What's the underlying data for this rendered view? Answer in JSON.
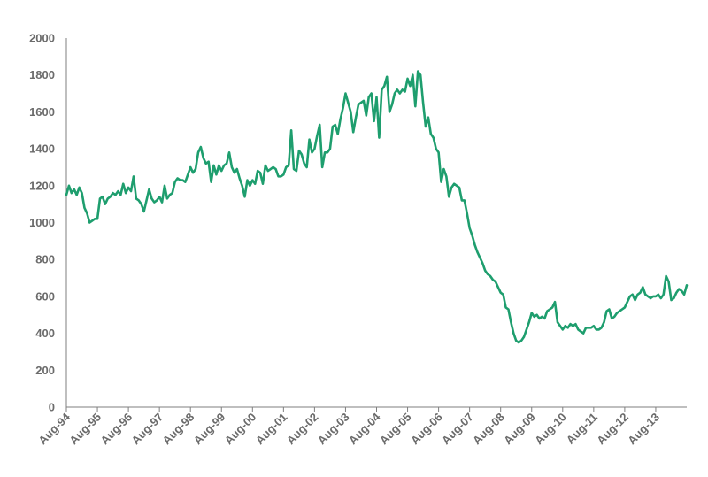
{
  "colors": {
    "series": "#1e9e6e",
    "axis": "#7f7f7f",
    "tick_text": "#6b6b6b"
  },
  "chart_data": {
    "type": "line",
    "title": "",
    "xlabel": "",
    "ylabel": "",
    "ylim": [
      0,
      2000
    ],
    "yticks": [
      0,
      200,
      400,
      600,
      800,
      1000,
      1200,
      1400,
      1600,
      1800,
      2000
    ],
    "x_tick_labels": [
      "Aug-94",
      "Aug-95",
      "Aug-96",
      "Aug-97",
      "Aug-98",
      "Aug-99",
      "Aug-00",
      "Aug-01",
      "Aug-02",
      "Aug-03",
      "Aug-04",
      "Aug-05",
      "Aug-06",
      "Aug-07",
      "Aug-08",
      "Aug-09",
      "Aug-10",
      "Aug-11",
      "Aug-12",
      "Aug-13"
    ],
    "grid": false,
    "legend": "none",
    "series": [
      {
        "x_start": "1994-08",
        "frequency": "monthly",
        "values": [
          1150,
          1200,
          1160,
          1180,
          1150,
          1190,
          1160,
          1080,
          1050,
          1000,
          1010,
          1020,
          1020,
          1130,
          1140,
          1100,
          1130,
          1140,
          1160,
          1150,
          1170,
          1150,
          1210,
          1160,
          1190,
          1170,
          1250,
          1130,
          1120,
          1100,
          1060,
          1120,
          1180,
          1130,
          1110,
          1120,
          1140,
          1110,
          1200,
          1130,
          1150,
          1160,
          1220,
          1240,
          1230,
          1230,
          1220,
          1260,
          1300,
          1270,
          1290,
          1380,
          1410,
          1350,
          1320,
          1330,
          1220,
          1310,
          1260,
          1310,
          1280,
          1310,
          1320,
          1380,
          1300,
          1270,
          1290,
          1240,
          1200,
          1140,
          1230,
          1200,
          1230,
          1210,
          1280,
          1270,
          1210,
          1310,
          1280,
          1290,
          1300,
          1290,
          1250,
          1250,
          1260,
          1300,
          1310,
          1500,
          1290,
          1280,
          1390,
          1370,
          1320,
          1300,
          1450,
          1380,
          1400,
          1470,
          1530,
          1300,
          1380,
          1380,
          1400,
          1520,
          1530,
          1480,
          1560,
          1620,
          1700,
          1650,
          1600,
          1490,
          1570,
          1640,
          1650,
          1660,
          1580,
          1680,
          1700,
          1550,
          1680,
          1460,
          1720,
          1740,
          1790,
          1600,
          1640,
          1700,
          1720,
          1700,
          1720,
          1710,
          1780,
          1740,
          1800,
          1630,
          1820,
          1800,
          1650,
          1520,
          1570,
          1480,
          1460,
          1400,
          1380,
          1220,
          1290,
          1250,
          1140,
          1190,
          1210,
          1200,
          1190,
          1120,
          1120,
          1050,
          970,
          930,
          880,
          840,
          810,
          780,
          740,
          720,
          710,
          690,
          680,
          650,
          620,
          610,
          540,
          530,
          460,
          400,
          360,
          350,
          360,
          380,
          420,
          460,
          510,
          490,
          500,
          480,
          490,
          480,
          520,
          530,
          540,
          570,
          460,
          440,
          420,
          440,
          430,
          450,
          440,
          450,
          420,
          410,
          400,
          430,
          430,
          430,
          440,
          420,
          420,
          430,
          460,
          520,
          530,
          480,
          490,
          510,
          520,
          530,
          540,
          570,
          600,
          610,
          580,
          610,
          620,
          650,
          610,
          600,
          590,
          600,
          600,
          610,
          590,
          610,
          710,
          680,
          580,
          590,
          620,
          640,
          630,
          610,
          660
        ]
      }
    ]
  }
}
